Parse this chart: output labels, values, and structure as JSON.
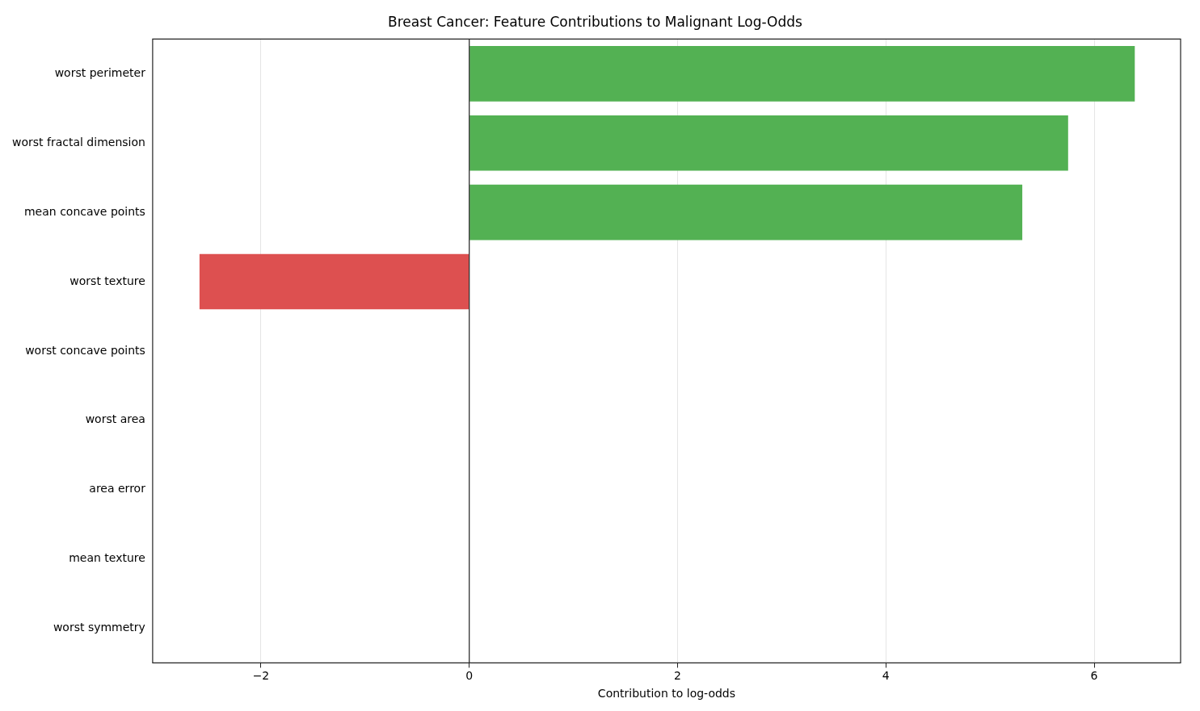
{
  "chart_data": {
    "type": "bar",
    "orientation": "horizontal",
    "title": "Breast Cancer: Feature Contributions to Malignant Log-Odds",
    "xlabel": "Contribution to log-odds",
    "categories": [
      "worst perimeter",
      "worst fractal dimension",
      "mean concave points",
      "worst texture",
      "worst concave points",
      "worst area",
      "area error",
      "mean texture",
      "worst symmetry"
    ],
    "values": [
      6.39,
      5.75,
      5.31,
      -2.59,
      0,
      0,
      0,
      0,
      0
    ],
    "colors": [
      "#53b153",
      "#53b153",
      "#53b153",
      "#dd5050",
      "#53b153",
      "#53b153",
      "#53b153",
      "#53b153",
      "#53b153"
    ],
    "xlim": [
      -3.04,
      6.83
    ],
    "xticks": [
      {
        "value": -2,
        "label": "−2"
      },
      0,
      2,
      4,
      6
    ],
    "ref_lines": [
      {
        "axis": "x",
        "value": 0,
        "color": "#222222"
      }
    ],
    "grid": "x",
    "legend": false
  }
}
